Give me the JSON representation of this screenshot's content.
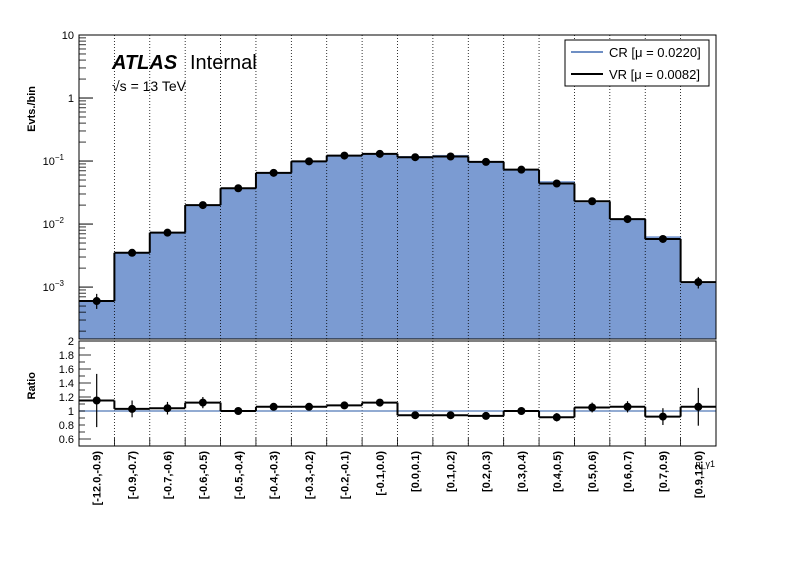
{
  "chart_data": {
    "type": "bar",
    "atlas_label": {
      "bold": "ATLAS",
      "plain": "Internal",
      "energy": "√s = 13 TeV"
    },
    "categories": [
      "[-12.0,-0.9)",
      "[-0.9,-0.7)",
      "[-0.7,-0.6)",
      "[-0.6,-0.5)",
      "[-0.5,-0.4)",
      "[-0.4,-0.3)",
      "[-0.3,-0.2)",
      "[-0.2,-0.1)",
      "[-0.1,0.0)",
      "[0.0,0.1)",
      "[0.1,0.2)",
      "[0.2,0.3)",
      "[0.3,0.4)",
      "[0.4,0.5)",
      "[0.5,0.6)",
      "[0.6,0.7)",
      "[0.7,0.9)",
      "[0.9,12.0)"
    ],
    "xlabel": "η_γ1",
    "upper": {
      "ylabel": "Evts./bin",
      "yscale": "log",
      "ylim": [
        0.00015,
        10
      ],
      "ticks": [
        {
          "value": 10,
          "base": "10",
          "exp": ""
        },
        {
          "value": 1,
          "base": "1",
          "exp": ""
        },
        {
          "value": 0.1,
          "base": "10",
          "exp": "−1"
        },
        {
          "value": 0.01,
          "base": "10",
          "exp": "−2"
        },
        {
          "value": 0.001,
          "base": "10",
          "exp": "−3"
        }
      ],
      "series": [
        {
          "name": "CR [μ = 0.0220]",
          "color": "#7b9bd2",
          "line_color": "#6f8fc4",
          "values": [
            0.0006,
            0.0036,
            0.0075,
            0.02,
            0.038,
            0.066,
            0.1,
            0.125,
            0.127,
            0.12,
            0.125,
            0.1,
            0.072,
            0.048,
            0.022,
            0.012,
            0.0064,
            0.00115
          ]
        },
        {
          "name": "VR [μ = 0.0082]",
          "color": "#000000",
          "values": [
            0.0006,
            0.0035,
            0.0073,
            0.02,
            0.037,
            0.065,
            0.099,
            0.122,
            0.13,
            0.115,
            0.118,
            0.097,
            0.073,
            0.044,
            0.023,
            0.012,
            0.0058,
            0.0012
          ],
          "errors_low": [
            0.00045,
            0.0031,
            0.0066,
            0.0185,
            0.0355,
            0.0635,
            0.097,
            0.119,
            0.127,
            0.112,
            0.115,
            0.095,
            0.071,
            0.0425,
            0.0218,
            0.0113,
            0.0053,
            0.00095
          ],
          "errors_high": [
            0.00078,
            0.0039,
            0.008,
            0.0215,
            0.0385,
            0.0665,
            0.101,
            0.125,
            0.133,
            0.118,
            0.121,
            0.099,
            0.075,
            0.0455,
            0.0242,
            0.0127,
            0.0063,
            0.00145
          ]
        }
      ]
    },
    "ratio": {
      "ylabel": "Ratio",
      "ylim": [
        0.5,
        2.0
      ],
      "ticks": [
        "2",
        "1.8",
        "1.6",
        "1.4",
        "1.2",
        "1",
        "0.8",
        "0.6"
      ],
      "tick_values": [
        2.0,
        1.8,
        1.6,
        1.4,
        1.2,
        1.0,
        0.8,
        0.6
      ],
      "values": [
        1.15,
        1.03,
        1.04,
        1.12,
        1.0,
        1.06,
        1.06,
        1.08,
        1.12,
        0.94,
        0.94,
        0.93,
        1.0,
        0.91,
        1.05,
        1.06,
        0.92,
        1.06
      ],
      "errors": [
        0.38,
        0.12,
        0.09,
        0.08,
        0.04,
        0.05,
        0.04,
        0.05,
        0.05,
        0.04,
        0.04,
        0.04,
        0.05,
        0.06,
        0.07,
        0.08,
        0.12,
        0.27
      ],
      "reference": 1.0
    },
    "legend_position": "top-right",
    "grid": "vertical dotted at bin edges"
  }
}
